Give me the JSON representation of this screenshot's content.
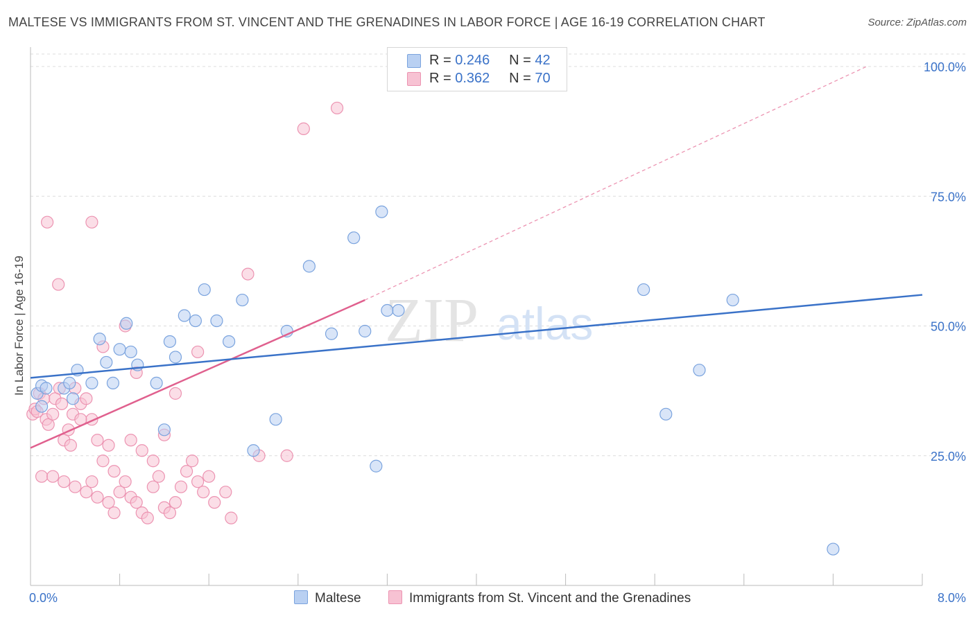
{
  "title": "MALTESE VS IMMIGRANTS FROM ST. VINCENT AND THE GRENADINES IN LABOR FORCE | AGE 16-19 CORRELATION CHART",
  "source": "Source: ZipAtlas.com",
  "colors": {
    "blue": "#3a72c8",
    "blue_fill": "#b9d0f2",
    "blue_stroke": "#7aa3de",
    "pink": "#e0608e",
    "pink_fill": "#f7c2d3",
    "pink_stroke": "#ec93b1",
    "grid": "#dcdcdc",
    "axis_text": "#3a72c8"
  },
  "legend": {
    "rows": [
      {
        "r_label": "R = ",
        "r_value": "0.246",
        "n_label": "N = ",
        "n_value": "42"
      },
      {
        "r_label": "R = ",
        "r_value": "0.362",
        "n_label": "N = ",
        "n_value": "70"
      }
    ]
  },
  "bottom_legend": {
    "maltese": "Maltese",
    "svg": "Immigrants from St. Vincent and the Grenadines"
  },
  "watermark": {
    "zip": "ZIP",
    "atlas": "atlas"
  },
  "chart_data": {
    "type": "scatter",
    "title": "MALTESE VS IMMIGRANTS FROM ST. VINCENT AND THE GRENADINES IN LABOR FORCE | AGE 16-19 CORRELATION CHART",
    "xlabel": "",
    "ylabel": "In Labor Force | Age 16-19",
    "xlim": [
      0,
      8
    ],
    "ylim": [
      0,
      100
    ],
    "x_tick_labels": [
      "0.0%",
      "8.0%"
    ],
    "y_tick_labels": [
      "25.0%",
      "50.0%",
      "75.0%",
      "100.0%"
    ],
    "y_ticks": [
      25,
      50,
      75,
      100
    ],
    "grid": true,
    "legend_position": "top-center",
    "series": [
      {
        "name": "Maltese",
        "R": 0.246,
        "N": 42,
        "trend": {
          "x": [
            0,
            8
          ],
          "y": [
            40,
            56
          ]
        },
        "points": [
          [
            0.06,
            37
          ],
          [
            0.1,
            38.5
          ],
          [
            0.14,
            38
          ],
          [
            0.1,
            34.5
          ],
          [
            0.3,
            38
          ],
          [
            0.42,
            41.5
          ],
          [
            0.38,
            36
          ],
          [
            0.35,
            39
          ],
          [
            0.55,
            39
          ],
          [
            0.62,
            47.5
          ],
          [
            0.68,
            43
          ],
          [
            0.74,
            39
          ],
          [
            0.8,
            45.5
          ],
          [
            0.86,
            50.5
          ],
          [
            0.9,
            45
          ],
          [
            0.96,
            42.5
          ],
          [
            1.13,
            39
          ],
          [
            1.2,
            30
          ],
          [
            1.25,
            47
          ],
          [
            1.3,
            44
          ],
          [
            1.38,
            52
          ],
          [
            1.48,
            51
          ],
          [
            1.56,
            57
          ],
          [
            1.67,
            51
          ],
          [
            1.78,
            47
          ],
          [
            1.9,
            55
          ],
          [
            2.0,
            26
          ],
          [
            2.2,
            32
          ],
          [
            2.3,
            49
          ],
          [
            2.5,
            61.5
          ],
          [
            2.7,
            48.5
          ],
          [
            2.9,
            67
          ],
          [
            3.0,
            49
          ],
          [
            3.1,
            23
          ],
          [
            3.2,
            53
          ],
          [
            3.15,
            72
          ],
          [
            3.3,
            53
          ],
          [
            5.5,
            57
          ],
          [
            6.3,
            55
          ],
          [
            6.0,
            41.5
          ],
          [
            5.7,
            33
          ],
          [
            7.2,
            7
          ]
        ]
      },
      {
        "name": "Immigrants from St. Vincent and the Grenadines",
        "R": 0.362,
        "N": 70,
        "trend": {
          "x": [
            0,
            3.0
          ],
          "y": [
            26.5,
            55
          ]
        },
        "trend_dashed": {
          "x": [
            3.0,
            7.5
          ],
          "y": [
            55,
            100
          ]
        },
        "points": [
          [
            0.02,
            33
          ],
          [
            0.04,
            34
          ],
          [
            0.06,
            33.5
          ],
          [
            0.08,
            37
          ],
          [
            0.12,
            36
          ],
          [
            0.14,
            32
          ],
          [
            0.16,
            31
          ],
          [
            0.2,
            33
          ],
          [
            0.22,
            36
          ],
          [
            0.26,
            38
          ],
          [
            0.28,
            35
          ],
          [
            0.3,
            28
          ],
          [
            0.34,
            30
          ],
          [
            0.36,
            27
          ],
          [
            0.38,
            33
          ],
          [
            0.4,
            38
          ],
          [
            0.45,
            35
          ],
          [
            0.5,
            36
          ],
          [
            0.55,
            32
          ],
          [
            0.6,
            28
          ],
          [
            0.65,
            24
          ],
          [
            0.7,
            27
          ],
          [
            0.75,
            22
          ],
          [
            0.8,
            18
          ],
          [
            0.85,
            20
          ],
          [
            0.9,
            17
          ],
          [
            0.95,
            16
          ],
          [
            1.0,
            14
          ],
          [
            1.05,
            13
          ],
          [
            1.1,
            19
          ],
          [
            1.15,
            21
          ],
          [
            1.2,
            15
          ],
          [
            1.25,
            14
          ],
          [
            1.3,
            16
          ],
          [
            1.35,
            19
          ],
          [
            1.4,
            22
          ],
          [
            1.45,
            24
          ],
          [
            1.5,
            20
          ],
          [
            1.55,
            18
          ],
          [
            1.6,
            21
          ],
          [
            0.1,
            21
          ],
          [
            0.2,
            21
          ],
          [
            0.3,
            20
          ],
          [
            0.4,
            19
          ],
          [
            0.5,
            18
          ],
          [
            0.55,
            20
          ],
          [
            0.6,
            17
          ],
          [
            0.7,
            16
          ],
          [
            0.75,
            14
          ],
          [
            0.9,
            28
          ],
          [
            1.0,
            26
          ],
          [
            1.1,
            24
          ],
          [
            1.2,
            29
          ],
          [
            1.3,
            37
          ],
          [
            1.5,
            45
          ],
          [
            1.75,
            18
          ],
          [
            1.8,
            13
          ],
          [
            1.95,
            60
          ],
          [
            2.05,
            25
          ],
          [
            2.3,
            25
          ],
          [
            2.45,
            88
          ],
          [
            2.75,
            92
          ],
          [
            0.55,
            70
          ],
          [
            0.15,
            70
          ],
          [
            0.25,
            58
          ],
          [
            0.45,
            32
          ],
          [
            0.65,
            46
          ],
          [
            0.85,
            50
          ],
          [
            0.95,
            41
          ],
          [
            1.65,
            16
          ]
        ]
      }
    ]
  }
}
